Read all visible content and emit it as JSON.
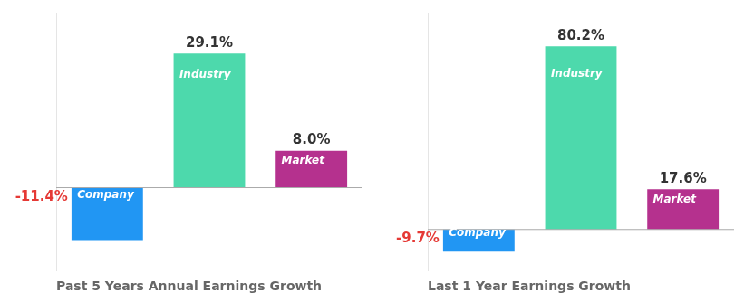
{
  "chart_data": [
    {
      "type": "bar",
      "title": "Past 5 Years Annual Earnings Growth",
      "categories": [
        "Company",
        "Industry",
        "Market"
      ],
      "values": [
        -11.4,
        29.1,
        8.0
      ],
      "value_labels": [
        "-11.4%",
        "29.1%",
        "8.0%"
      ],
      "colors": [
        "#2196f3",
        "#4dd9ac",
        "#b5318e"
      ],
      "ylim": [
        -18,
        38
      ],
      "data_labels": true,
      "tick_labels": false,
      "grid": false
    },
    {
      "type": "bar",
      "title": "Last 1 Year Earnings Growth",
      "categories": [
        "Company",
        "Industry",
        "Market"
      ],
      "values": [
        -9.7,
        80.2,
        17.6
      ],
      "value_labels": [
        "-9.7%",
        "80.2%",
        "17.6%"
      ],
      "colors": [
        "#2196f3",
        "#4dd9ac",
        "#b5318e"
      ],
      "ylim": [
        -18,
        95
      ],
      "data_labels": true,
      "tick_labels": false,
      "grid": false
    }
  ]
}
